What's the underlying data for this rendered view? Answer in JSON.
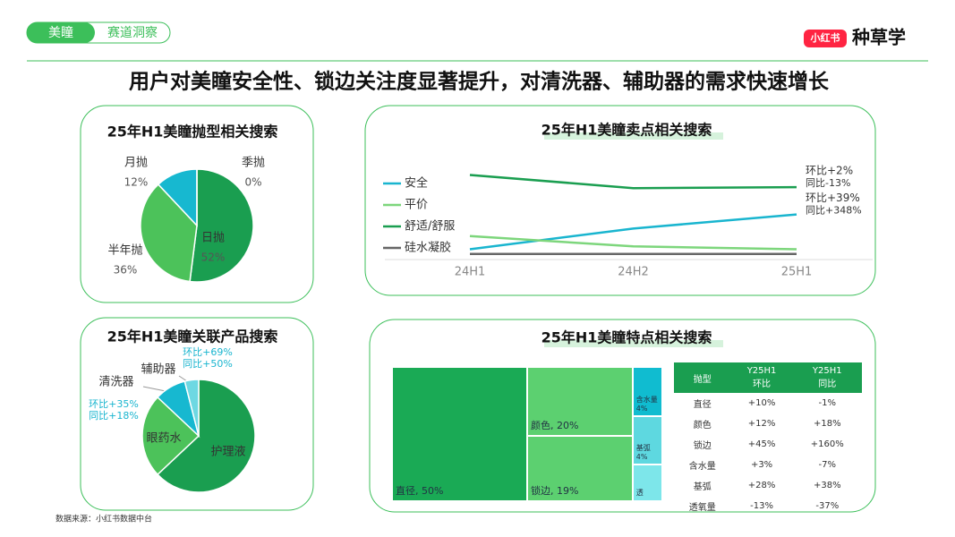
{
  "header": {
    "tabs": [
      "美瞳",
      "赛道洞察"
    ],
    "badge": "小红书",
    "brand": "种草学"
  },
  "title": "用户对美瞳安全性、锁边关注度显著提升，对清洗器、辅助器的需求快速增长",
  "chart_data": [
    {
      "type": "pie",
      "title": "25年H1美瞳抛型相关搜索",
      "categories": [
        "日抛",
        "半年抛",
        "月抛",
        "季抛"
      ],
      "values": [
        52,
        36,
        12,
        0
      ],
      "value_labels": [
        "52%",
        "36%",
        "12%",
        "0%"
      ],
      "colors": [
        "#1a9e50",
        "#4cc25a",
        "#17b8d0",
        "#a8e6ee"
      ]
    },
    {
      "type": "line",
      "title": "25年H1美瞳卖点相关搜索",
      "x": [
        "24H1",
        "24H2",
        "25H1"
      ],
      "ylim": [
        0,
        100
      ],
      "legend": "left",
      "series": [
        {
          "name": "安全",
          "color": "#19b5cf",
          "values": [
            11,
            33,
            48
          ],
          "end_labels": [
            "环比+39%",
            "同比+348%"
          ]
        },
        {
          "name": "平价",
          "color": "#7dd67c",
          "values": [
            25,
            14,
            11
          ]
        },
        {
          "name": "舒适/舒服",
          "color": "#1a9e50",
          "values": [
            90,
            76,
            77
          ],
          "end_labels": [
            "环比+2%",
            "同比-13%"
          ]
        },
        {
          "name": "硅水凝胶",
          "color": "#666666",
          "values": [
            6,
            6,
            6
          ]
        }
      ]
    },
    {
      "type": "pie",
      "title": "25年H1美瞳关联产品搜索",
      "categories": [
        "护理液",
        "眼药水",
        "清洗器",
        "辅助器"
      ],
      "values": [
        63,
        24,
        9,
        4
      ],
      "colors": [
        "#1a9e50",
        "#4cc25a",
        "#17b8d0",
        "#6ed8e2"
      ],
      "annotations": [
        null,
        null,
        [
          "环比+35%",
          "同比+18%"
        ],
        [
          "环比+69%",
          "同比+50%"
        ]
      ]
    },
    {
      "type": "treemap",
      "title": "25年H1美瞳特点相关搜索",
      "labels": [
        "直径, 50%",
        "颜色, 20%",
        "锁边, 19%",
        "含水量 4%",
        "基弧 4%",
        "透"
      ],
      "values": [
        50,
        20,
        19,
        4,
        4,
        3
      ],
      "colors": [
        "#1aaa55",
        "#5cd070",
        "#5cd070",
        "#10bcd0",
        "#5ed8e0",
        "#7de6ea"
      ]
    }
  ],
  "table": {
    "header": [
      [
        "抛型"
      ],
      [
        "Y25H1",
        "环比"
      ],
      [
        "Y25H1",
        "同比"
      ]
    ],
    "rows": [
      [
        "直径",
        "+10%",
        "-1%"
      ],
      [
        "颜色",
        "+12%",
        "+18%"
      ],
      [
        "锁边",
        "+45%",
        "+160%"
      ],
      [
        "含水量",
        "+3%",
        "-7%"
      ],
      [
        "基弧",
        "+28%",
        "+38%"
      ],
      [
        "透氧量",
        "-13%",
        "-37%"
      ]
    ]
  },
  "source": "数据来源：小红书数据中台"
}
